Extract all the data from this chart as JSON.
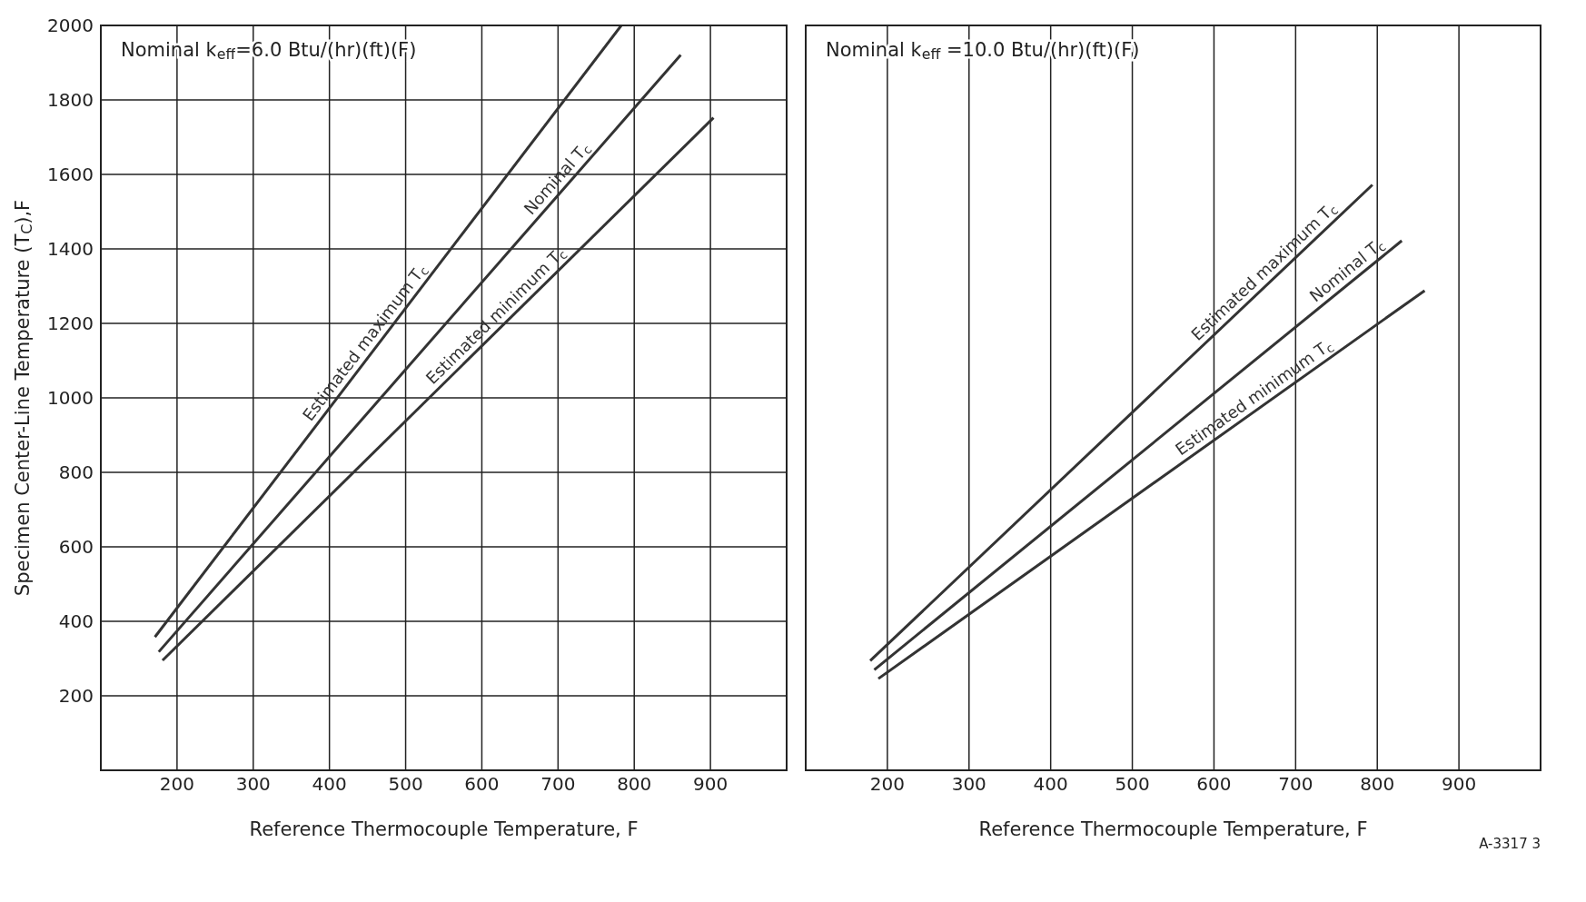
{
  "chart_data": [
    {
      "type": "line",
      "title": "Nominal k$_{eff}$=6.0 Btu/(hr)(ft)(F)",
      "xlabel": "Reference Thermocouple Temperature, F",
      "ylabel": "Specimen Center-Line Temperature (T$_{C}$),F",
      "xlim": [
        100,
        1000
      ],
      "ylim": [
        0,
        2000
      ],
      "xticks": [
        200,
        300,
        400,
        500,
        600,
        700,
        800,
        900
      ],
      "yticks": [
        200,
        400,
        600,
        800,
        1000,
        1200,
        1400,
        1600,
        1800,
        2000
      ],
      "grid": true,
      "series": [
        {
          "name": "Estimated maximum T$_{c}$",
          "color": "#333333",
          "x": [
            171,
            783
          ],
          "values": [
            358,
            2000
          ]
        },
        {
          "name": "Nominal T$_{c}$",
          "color": "#333333",
          "x": [
            176,
            861
          ],
          "values": [
            318,
            1921
          ]
        },
        {
          "name": "Estimated minimum T$_{c}$",
          "color": "#333333",
          "x": [
            181,
            904
          ],
          "values": [
            295,
            1752
          ]
        }
      ]
    },
    {
      "type": "line",
      "title": "Nominal k$_{eff}$ =10.0 Btu/(hr)(ft)(F)",
      "xlabel": "Reference Thermocouple Temperature, F",
      "annotations": [
        "A-3317 3"
      ],
      "xlim": [
        100,
        1000
      ],
      "ylim": [
        0,
        2000
      ],
      "xticks": [
        200,
        300,
        400,
        500,
        600,
        700,
        800,
        900
      ],
      "yticks": [
        200,
        400,
        600,
        800,
        1000,
        1200,
        1400,
        1600,
        1800,
        2000
      ],
      "grid": true,
      "tick_labels": "x",
      "series": [
        {
          "name": "Estimated maximum T$_{c}$",
          "color": "#333333",
          "x": [
            179,
            794
          ],
          "values": [
            294,
            1572
          ]
        },
        {
          "name": "Nominal T$_{c}$",
          "color": "#333333",
          "x": [
            184,
            830
          ],
          "values": [
            270,
            1422
          ]
        },
        {
          "name": "Estimated minimum T$_{c}$",
          "color": "#333333",
          "x": [
            189,
            858
          ],
          "values": [
            246,
            1288
          ]
        }
      ]
    }
  ]
}
